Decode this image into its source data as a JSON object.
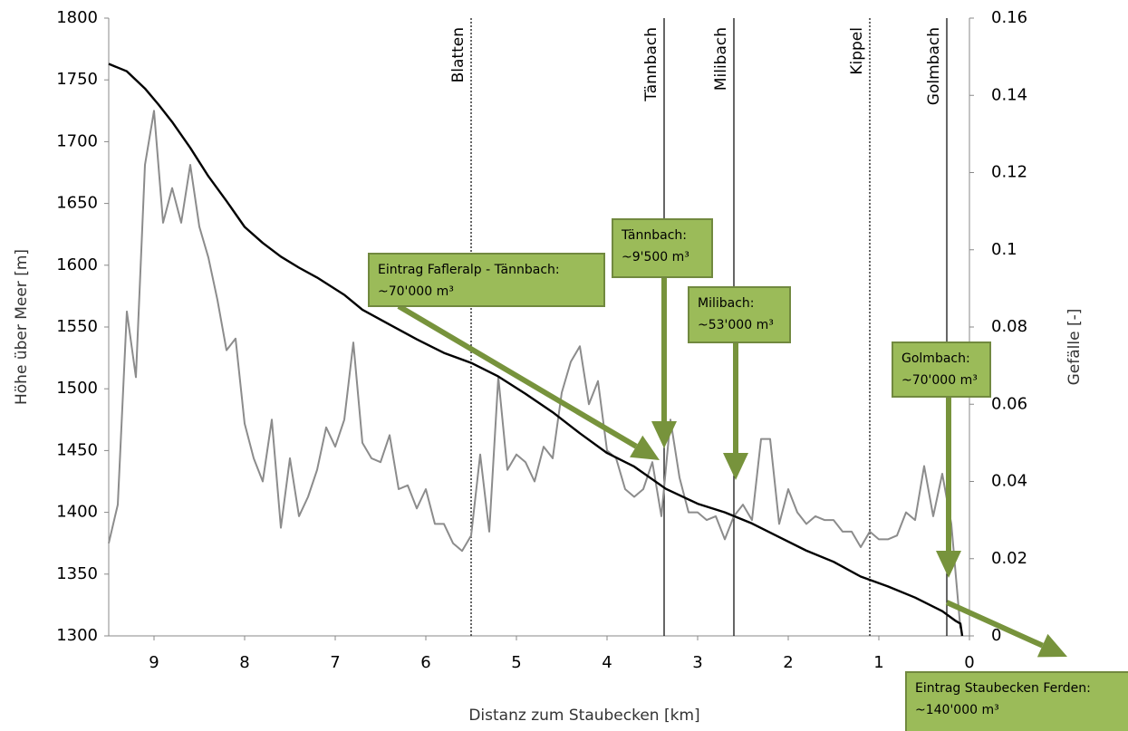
{
  "chart_data": {
    "type": "line",
    "xlabel": "Distanz zum Staubecken [km]",
    "ylabel": "Höhe über Meer [m]",
    "y2label": "Gefälle [-]",
    "xlim": [
      9.5,
      0
    ],
    "xticks": [
      9,
      8,
      7,
      6,
      5,
      4,
      3,
      2,
      1,
      0
    ],
    "ylim": [
      1300,
      1800
    ],
    "yticks": [
      1300,
      1350,
      1400,
      1450,
      1500,
      1550,
      1600,
      1650,
      1700,
      1750,
      1800
    ],
    "y2lim": [
      0,
      0.16
    ],
    "y2ticks": [
      0,
      0.02,
      0.04,
      0.06,
      0.08,
      0.1,
      0.12,
      0.14,
      0.16
    ],
    "grid": false,
    "series": [
      {
        "color": "#000000",
        "axis": "y",
        "x": [
          9.5,
          9.3,
          9.1,
          8.95,
          8.8,
          8.6,
          8.4,
          8.2,
          8.0,
          7.8,
          7.6,
          7.4,
          7.2,
          6.9,
          6.7,
          6.4,
          6.1,
          5.8,
          5.5,
          5.2,
          4.9,
          4.6,
          4.3,
          4.0,
          3.7,
          3.35,
          3.0,
          2.7,
          2.4,
          2.1,
          1.8,
          1.5,
          1.2,
          0.9,
          0.6,
          0.3,
          0.15,
          0.1,
          0.08
        ],
        "values": [
          1763,
          1757,
          1743,
          1730,
          1716,
          1695,
          1672,
          1652,
          1631,
          1618,
          1607,
          1598,
          1590,
          1576,
          1564,
          1552,
          1540,
          1529,
          1521,
          1510,
          1496,
          1481,
          1464,
          1448,
          1437,
          1419,
          1407,
          1400,
          1391,
          1380,
          1369,
          1360,
          1348,
          1340,
          1331,
          1320,
          1312,
          1310,
          1300
        ]
      },
      {
        "color": "#8c8c8c",
        "axis": "y2",
        "x": [
          9.5,
          9.4,
          9.3,
          9.2,
          9.1,
          9.0,
          8.9,
          8.8,
          8.7,
          8.6,
          8.5,
          8.4,
          8.3,
          8.2,
          8.1,
          8.0,
          7.9,
          7.8,
          7.7,
          7.6,
          7.5,
          7.4,
          7.3,
          7.2,
          7.1,
          7.0,
          6.9,
          6.8,
          6.7,
          6.6,
          6.5,
          6.4,
          6.3,
          6.2,
          6.1,
          6.0,
          5.9,
          5.8,
          5.7,
          5.6,
          5.5,
          5.4,
          5.3,
          5.2,
          5.1,
          5.0,
          4.9,
          4.8,
          4.7,
          4.6,
          4.5,
          4.4,
          4.3,
          4.2,
          4.1,
          4.0,
          3.9,
          3.8,
          3.7,
          3.6,
          3.5,
          3.4,
          3.3,
          3.2,
          3.1,
          3.0,
          2.9,
          2.8,
          2.7,
          2.6,
          2.5,
          2.4,
          2.3,
          2.2,
          2.1,
          2.0,
          1.9,
          1.8,
          1.7,
          1.6,
          1.5,
          1.4,
          1.3,
          1.2,
          1.1,
          1.0,
          0.9,
          0.8,
          0.7,
          0.6,
          0.5,
          0.4,
          0.3,
          0.2,
          0.1
        ],
        "values": [
          0.024,
          0.034,
          0.084,
          0.067,
          0.122,
          0.136,
          0.107,
          0.116,
          0.107,
          0.122,
          0.106,
          0.098,
          0.087,
          0.074,
          0.077,
          0.055,
          0.046,
          0.04,
          0.056,
          0.028,
          0.046,
          0.031,
          0.036,
          0.043,
          0.054,
          0.049,
          0.056,
          0.076,
          0.05,
          0.046,
          0.045,
          0.052,
          0.038,
          0.039,
          0.033,
          0.038,
          0.029,
          0.029,
          0.024,
          0.022,
          0.026,
          0.047,
          0.027,
          0.067,
          0.043,
          0.047,
          0.045,
          0.04,
          0.049,
          0.046,
          0.063,
          0.071,
          0.075,
          0.06,
          0.066,
          0.048,
          0.046,
          0.038,
          0.036,
          0.038,
          0.045,
          0.031,
          0.056,
          0.041,
          0.032,
          0.032,
          0.03,
          0.031,
          0.025,
          0.031,
          0.034,
          0.03,
          0.051,
          0.051,
          0.029,
          0.038,
          0.032,
          0.029,
          0.031,
          0.03,
          0.03,
          0.027,
          0.027,
          0.023,
          0.027,
          0.025,
          0.025,
          0.026,
          0.032,
          0.03,
          0.044,
          0.031,
          0.042,
          0.029,
          0.002
        ]
      }
    ],
    "markers": [
      {
        "label": "Blatten",
        "x": 5.5,
        "style": "dotted"
      },
      {
        "label": "Tännbach",
        "x": 3.37,
        "style": "solid"
      },
      {
        "label": "Milibach",
        "x": 2.6,
        "style": "solid"
      },
      {
        "label": "Kippel",
        "x": 1.1,
        "style": "dotted"
      },
      {
        "label": "Golmbach",
        "x": 0.25,
        "style": "solid"
      }
    ],
    "annotations": [
      {
        "lines": [
          "Eintrag Fafleralp - Tännbach:",
          "~70'000 m³"
        ]
      },
      {
        "lines": [
          "Tännbach:",
          "~9'500 m³"
        ]
      },
      {
        "lines": [
          "Milibach:",
          "~53'000 m³"
        ]
      },
      {
        "lines": [
          "Golmbach:",
          "~70'000 m³"
        ]
      },
      {
        "lines": [
          "Eintrag Staubecken Ferden:",
          "~140'000 m³"
        ]
      }
    ]
  }
}
